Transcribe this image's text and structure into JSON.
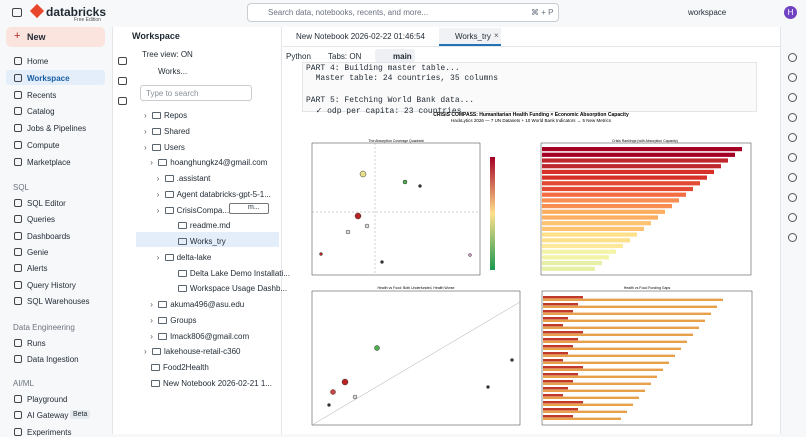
{
  "topbar": {
    "brand": "databricks",
    "edition": "Free Edition",
    "search": "Search data, notebooks, recents, and more...",
    "shortcut": "⌘ + P",
    "workspace": "workspace",
    "avatar": "H"
  },
  "nav": {
    "new": "New",
    "main": [
      "Home",
      "Workspace",
      "Recents",
      "Catalog",
      "Jobs & Pipelines",
      "Compute",
      "Marketplace"
    ],
    "sections": [
      {
        "title": "SQL",
        "items": [
          "SQL Editor",
          "Queries",
          "Dashboards",
          "Genie",
          "Alerts",
          "Query History",
          "SQL Warehouses"
        ]
      },
      {
        "title": "Data Engineering",
        "items": [
          "Runs",
          "Data Ingestion"
        ]
      },
      {
        "title": "AI/ML",
        "items": [
          "Playground",
          "AI Gateway",
          "Experiments"
        ]
      }
    ],
    "badge": "Beta"
  },
  "browser": {
    "title": "Workspace",
    "tree_view": "Tree view: ON",
    "crumb": "Works...",
    "filter": "Type to search",
    "tree": [
      "Repos",
      "Shared",
      "Users",
      "hoanghungkz4@gmail.com",
      ".assistant",
      "Agent databricks-gpt-5-1...",
      "CrisisCompa...",
      "readme.md",
      "Works_try",
      "delta-lake",
      "Delta Lake Demo Installati...",
      "Workspace Usage Dashb...",
      "akuma496@asu.edu",
      "Groups",
      "lmack806@gmail.com",
      "lakehouse-retail-c360",
      "Food2Health",
      "New Notebook 2026-02-21 1..."
    ],
    "branch_chip": "m..."
  },
  "tabs": [
    "New Notebook 2026-02-22 01:46:54",
    "Works_try"
  ],
  "toolbar": {
    "language": "Python",
    "tabs": "Tabs: ON",
    "branch": "main"
  },
  "output": [
    "PART 4: Building master table...",
    "  Master table: 24 countries, 35 columns",
    "PART 5: Fetching World Bank data...",
    "  ✓ odp per capita: 23 countries"
  ],
  "figure": {
    "title": "CRISIS COMPASS: Humanitarian Health Funding × Economic Absorption Capacity",
    "subtitle": "HackLytics 2026 — 7 UN Datasets + 10 World Bank Indicators → 5 New Metrics",
    "panels": [
      "The Absorption Coverage Quadrant",
      "Crisis Rankings (with Absorption Capacity)",
      "Health vs Food: Both Underfunded, Health Worse",
      "Health vs Food Funding Gaps"
    ]
  }
}
